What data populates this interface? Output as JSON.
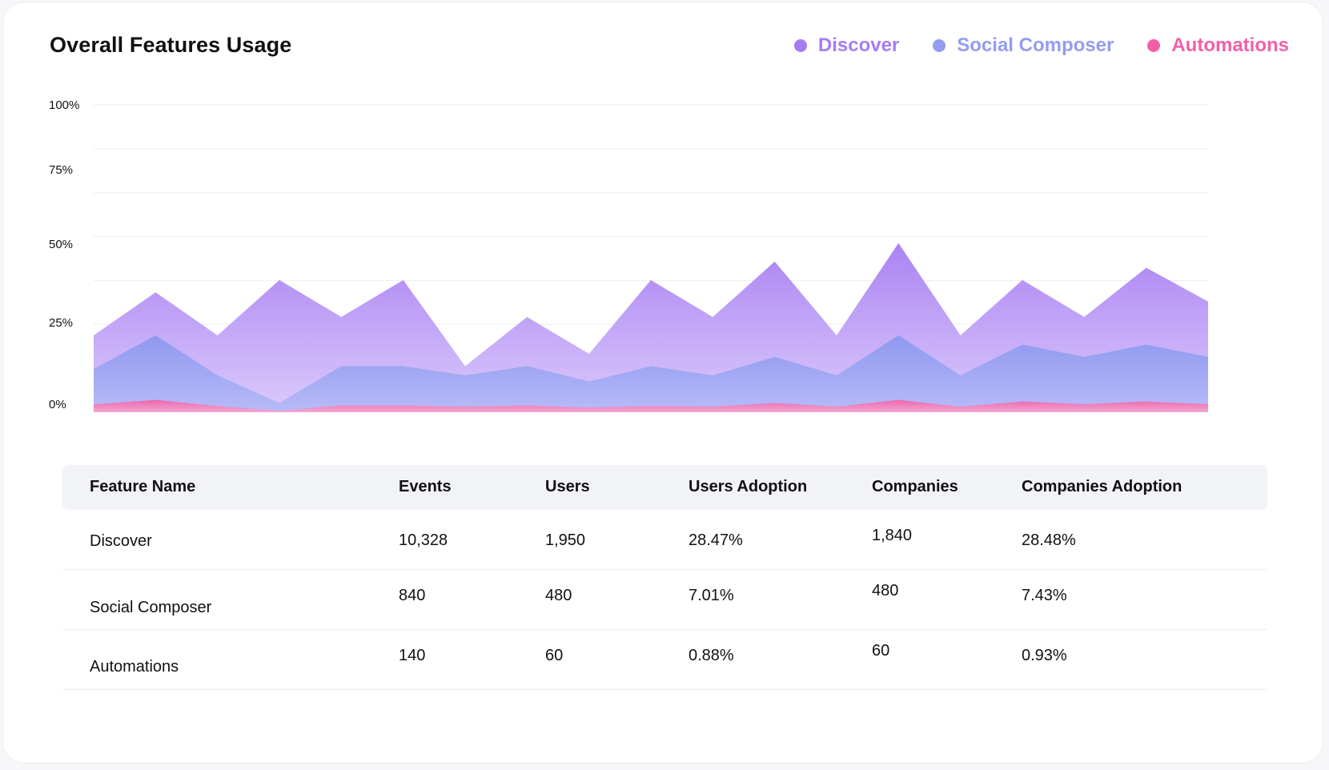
{
  "header": {
    "title": "Overall Features Usage"
  },
  "legend": [
    {
      "label": "Discover",
      "color": "#a67cf2",
      "icon": "dot-icon"
    },
    {
      "label": "Social Composer",
      "color": "#939cf0",
      "icon": "dot-icon"
    },
    {
      "label": "Automations",
      "color": "#f25fa8",
      "icon": "dot-icon"
    }
  ],
  "chart_data": {
    "type": "area",
    "title": "Overall Features Usage",
    "xlabel": "",
    "ylabel": "",
    "ylim": [
      0,
      100
    ],
    "y_tick_labels": [
      "100%",
      "75%",
      "50%",
      "25%",
      "0%"
    ],
    "grid": true,
    "legend_position": "top-right",
    "series": [
      {
        "name": "Discover",
        "color": "#a67cf2",
        "values": [
          25,
          39,
          25,
          43,
          31,
          43,
          15,
          31,
          19,
          43,
          31,
          49,
          25,
          55,
          25,
          43,
          31,
          47,
          36
        ]
      },
      {
        "name": "Social Composer",
        "color": "#939cf0",
        "values": [
          14,
          25,
          12,
          3,
          15,
          15,
          12,
          15,
          10,
          15,
          12,
          18,
          12,
          25,
          12,
          22,
          18,
          22,
          18
        ]
      },
      {
        "name": "Automations",
        "color": "#f25fa8",
        "values": [
          2.5,
          4,
          2,
          0.5,
          2.2,
          2.2,
          1.8,
          2.2,
          1.5,
          2,
          1.8,
          3,
          1.8,
          4,
          1.8,
          3.5,
          2.6,
          3.5,
          2.6
        ]
      }
    ]
  },
  "table": {
    "headers": [
      "Feature Name",
      "Events",
      "Users",
      "Users Adoption",
      "Companies",
      "Companies Adoption"
    ],
    "rows": [
      [
        "Discover",
        "10,328",
        "1,950",
        "28.47%",
        "1,840",
        "28.48%"
      ],
      [
        "Social Composer",
        "840",
        "480",
        "7.01%",
        "480",
        "7.43%"
      ],
      [
        "Automations",
        "140",
        "60",
        "0.88%",
        "60",
        "0.93%"
      ]
    ]
  }
}
